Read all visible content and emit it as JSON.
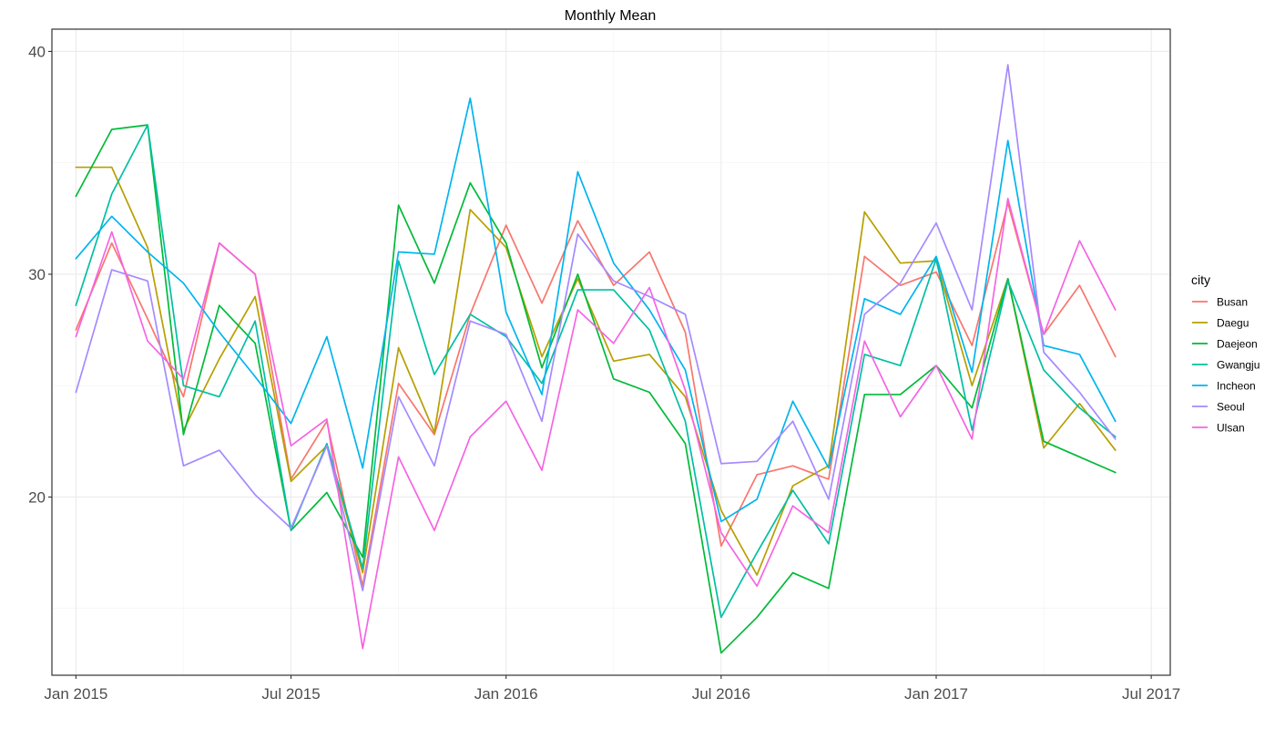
{
  "chart_data": {
    "type": "line",
    "title": "Monthly Mean",
    "xlabel": "",
    "ylabel": "",
    "x": [
      "2015-01",
      "2015-02",
      "2015-03",
      "2015-04",
      "2015-05",
      "2015-06",
      "2015-07",
      "2015-08",
      "2015-09",
      "2015-10",
      "2015-11",
      "2015-12",
      "2016-01",
      "2016-02",
      "2016-03",
      "2016-04",
      "2016-05",
      "2016-06",
      "2016-07",
      "2016-08",
      "2016-09",
      "2016-10",
      "2016-11",
      "2016-12",
      "2017-01",
      "2017-02",
      "2017-03",
      "2017-04",
      "2017-05",
      "2017-06"
    ],
    "x_ticks": [
      {
        "date": "2015-01",
        "label": "Jan 2015"
      },
      {
        "date": "2015-07",
        "label": "Jul 2015"
      },
      {
        "date": "2016-01",
        "label": "Jan 2016"
      },
      {
        "date": "2016-07",
        "label": "Jul 2016"
      },
      {
        "date": "2017-01",
        "label": "Jan 2017"
      },
      {
        "date": "2017-07",
        "label": "Jul 2017"
      }
    ],
    "xlim": [
      "2014-12",
      "2017-07"
    ],
    "y_ticks": [
      20,
      30,
      40
    ],
    "ylim": [
      12.0,
      41.0
    ],
    "grid": true,
    "legend": {
      "title": "city",
      "position": "right"
    },
    "series": [
      {
        "name": "Busan",
        "color": "#F8766D",
        "values": [
          27.5,
          31.4,
          28.0,
          24.5,
          31.4,
          30.0,
          20.8,
          23.4,
          16.0,
          25.1,
          22.8,
          28.2,
          32.2,
          28.7,
          32.4,
          29.5,
          31.0,
          27.4,
          17.8,
          21.0,
          21.4,
          20.8,
          30.8,
          29.5,
          30.1,
          26.8,
          33.2,
          27.3,
          29.5,
          26.3
        ]
      },
      {
        "name": "Daegu",
        "color": "#B79F00",
        "values": [
          34.8,
          34.8,
          31.2,
          23.0,
          26.2,
          29.0,
          20.7,
          22.3,
          16.6,
          26.7,
          22.9,
          32.9,
          31.2,
          26.3,
          29.8,
          26.1,
          26.4,
          24.5,
          19.4,
          16.5,
          20.5,
          21.4,
          32.8,
          30.5,
          30.6,
          25.0,
          29.8,
          22.2,
          24.2,
          22.1
        ]
      },
      {
        "name": "Daejeon",
        "color": "#00BA38",
        "values": [
          33.5,
          36.5,
          36.7,
          22.8,
          28.6,
          26.9,
          18.5,
          20.2,
          17.3,
          33.1,
          29.6,
          34.1,
          31.4,
          25.8,
          30.0,
          25.3,
          24.7,
          22.4,
          13.0,
          14.6,
          16.6,
          15.9,
          24.6,
          24.6,
          25.9,
          24.0,
          29.8,
          22.5,
          21.8,
          21.1
        ]
      },
      {
        "name": "Gwangju",
        "color": "#00BFA4",
        "values": [
          28.6,
          33.6,
          36.7,
          25.0,
          24.5,
          27.9,
          18.5,
          22.4,
          16.8,
          30.6,
          25.5,
          28.2,
          27.2,
          25.1,
          29.3,
          29.3,
          27.5,
          23.4,
          14.6,
          17.5,
          20.3,
          17.9,
          26.4,
          25.9,
          30.7,
          23.0,
          29.7,
          25.7,
          24.0,
          22.7
        ]
      },
      {
        "name": "Incheon",
        "color": "#00B4EF",
        "values": [
          30.7,
          32.6,
          31.0,
          29.6,
          27.4,
          25.4,
          23.3,
          27.2,
          21.3,
          31.0,
          30.9,
          37.9,
          28.3,
          24.6,
          34.6,
          30.5,
          28.4,
          25.7,
          18.9,
          19.9,
          24.3,
          21.3,
          28.9,
          28.2,
          30.8,
          25.6,
          36.0,
          26.8,
          26.4,
          23.4
        ]
      },
      {
        "name": "Seoul",
        "color": "#A58AFF",
        "values": [
          24.7,
          30.2,
          29.7,
          21.4,
          22.1,
          20.1,
          18.6,
          22.3,
          15.8,
          24.5,
          21.4,
          27.9,
          27.3,
          23.4,
          31.8,
          29.7,
          29.0,
          28.2,
          21.5,
          21.6,
          23.4,
          19.9,
          28.2,
          29.6,
          32.3,
          28.4,
          39.4,
          26.5,
          24.7,
          22.6
        ]
      },
      {
        "name": "Ulsan",
        "color": "#F564E3",
        "values": [
          27.2,
          31.9,
          27.0,
          25.3,
          31.4,
          30.0,
          22.3,
          23.5,
          13.2,
          21.8,
          18.5,
          22.7,
          24.3,
          21.2,
          28.4,
          26.9,
          29.4,
          24.8,
          18.4,
          16.0,
          19.6,
          18.4,
          27.0,
          23.6,
          25.9,
          22.6,
          33.4,
          27.3,
          31.5,
          28.4
        ]
      }
    ]
  }
}
